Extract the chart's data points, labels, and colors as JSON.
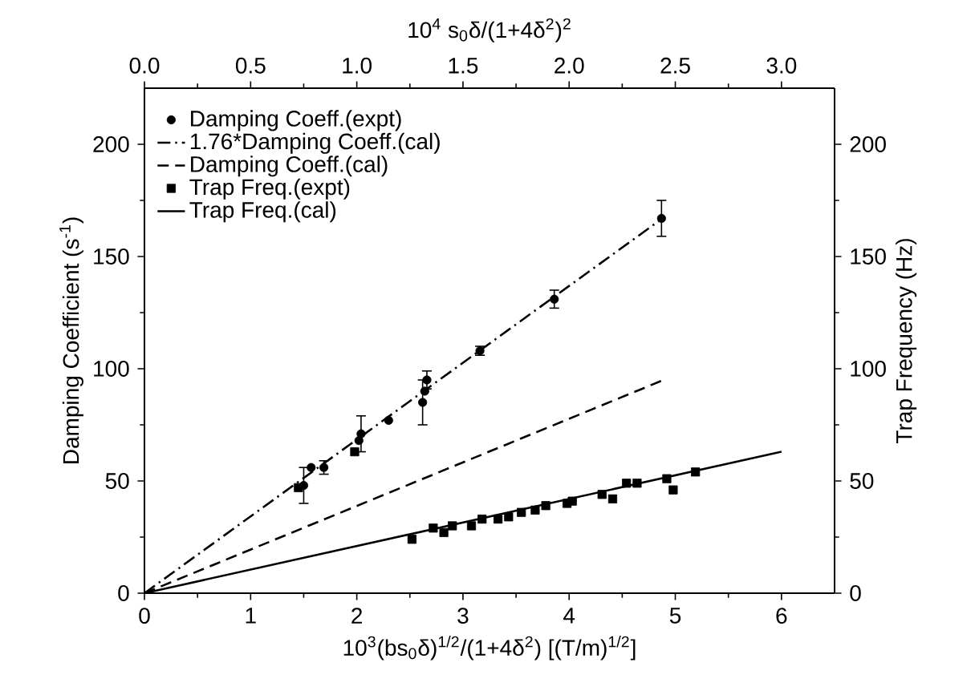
{
  "chart_data": {
    "type": "scatter",
    "xlabel": "10$^{3}$(bs$_{0}$δ)$^{1/2}$/(1+4δ$^{2}$) [(T/m)$^{1/2}$]",
    "ylabel": "Damping Coefficient (s$^{-1}$)",
    "y2label": "Trap Frequency (Hz)",
    "x2label": "10$^{4}$ s$_{0}$δ/(1+4δ$^{2}$)$^{2}$",
    "xlim": [
      0,
      6.5
    ],
    "xticks": [
      0,
      1,
      2,
      3,
      4,
      5,
      6
    ],
    "x2lim": [
      0,
      3.25
    ],
    "x2ticks": [
      {
        "value": 0,
        "label": "0.0"
      },
      {
        "value": 0.5,
        "label": "0.5"
      },
      {
        "value": 1,
        "label": "1.0"
      },
      {
        "value": 1.5,
        "label": "1.5"
      },
      {
        "value": 2,
        "label": "2.0"
      },
      {
        "value": 2.5,
        "label": "2.5"
      },
      {
        "value": 3,
        "label": "3.0"
      }
    ],
    "ylim": [
      0,
      225
    ],
    "yticks": [
      0,
      50,
      100,
      150,
      200
    ],
    "y2lim": [
      0,
      225
    ],
    "y2ticks": [
      0,
      50,
      100,
      150,
      200
    ],
    "legend": "top left",
    "series": [
      {
        "name": "Damping Coeff.(expt)",
        "marker": "circle",
        "color": "#000000",
        "x": [
          1.5,
          1.57,
          1.69,
          2.04,
          2.02,
          2.3,
          2.62,
          2.64,
          2.66,
          3.16,
          3.86,
          4.87
        ],
        "values": [
          48,
          56,
          56,
          71,
          68,
          77,
          85,
          90,
          95,
          108,
          131,
          167
        ],
        "errors": [
          8,
          null,
          3,
          8,
          null,
          null,
          10,
          null,
          4,
          2,
          4,
          8
        ]
      },
      {
        "name": "1.76*Damping Coeff.(cal)",
        "type": "line",
        "line_style": "dashdot",
        "color": "#000000",
        "x": [
          0,
          4.88
        ],
        "values": [
          0,
          167
        ]
      },
      {
        "name": "Damping Coeff.(cal)",
        "type": "line",
        "line_style": "dashed",
        "color": "#000000",
        "x": [
          0,
          4.89
        ],
        "values": [
          0,
          95
        ]
      },
      {
        "name": "Trap Freq.(expt)",
        "marker": "square",
        "axis": "y2",
        "color": "#000000",
        "x": [
          1.45,
          1.98,
          2.52,
          2.72,
          2.82,
          2.9,
          3.08,
          3.18,
          3.33,
          3.43,
          3.55,
          3.68,
          3.78,
          3.98,
          4.03,
          4.31,
          4.41,
          4.54,
          4.64,
          4.92,
          4.98,
          5.19
        ],
        "values": [
          47,
          63,
          24,
          29,
          27,
          30,
          30,
          33,
          33,
          34,
          36,
          37,
          39,
          40,
          41,
          44,
          42,
          49,
          49,
          51,
          46,
          54
        ]
      },
      {
        "name": "Trap Freq.(cal)",
        "type": "line",
        "line_style": "solid",
        "axis": "y2",
        "color": "#000000",
        "x": [
          0,
          6
        ],
        "values": [
          0,
          63
        ]
      }
    ]
  }
}
